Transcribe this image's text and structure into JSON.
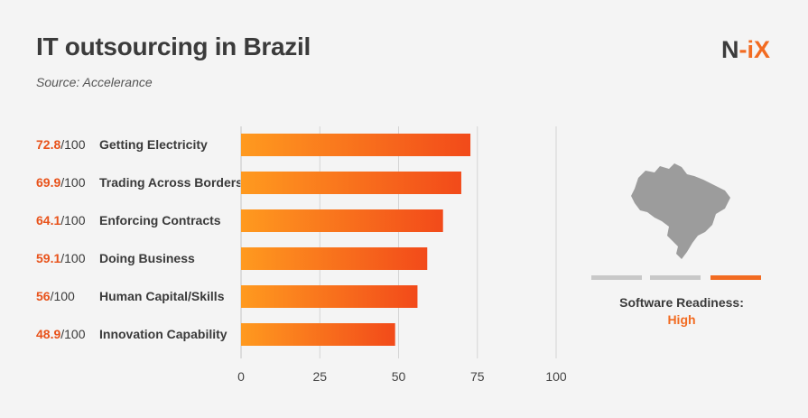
{
  "header": {
    "title": "IT outsourcing in Brazil",
    "source": "Source: Accelerance",
    "logo_main": "N",
    "logo_accent": "-iX"
  },
  "colors": {
    "accent": "#f26b21",
    "bar_start": "#ff9a1f",
    "bar_end": "#f24a1a",
    "gridline": "#d4d4d4",
    "inactive_segment": "#c8c8c8",
    "map_fill": "#9c9c9c"
  },
  "chart_data": {
    "type": "bar",
    "orientation": "horizontal",
    "title": "IT outsourcing in Brazil",
    "max_score_label": "/100",
    "categories": [
      "Getting Electricity",
      "Trading Across Borders",
      "Enforcing Contracts",
      "Doing Business",
      "Human Capital/Skills",
      "Innovation Capability"
    ],
    "values": [
      72.8,
      69.9,
      64.1,
      59.1,
      56,
      48.9
    ],
    "score_labels": [
      "72.8",
      "69.9",
      "64.1",
      "59.1",
      "56",
      "48.9"
    ],
    "xlim": [
      0,
      100
    ],
    "xticks": [
      0,
      25,
      50,
      75,
      100
    ],
    "xtick_labels": [
      "0",
      "25",
      "50",
      "75",
      "100"
    ],
    "grid": true
  },
  "readiness": {
    "label": "Software Readiness:",
    "value": "High",
    "level": 3,
    "levels_total": 3,
    "map_icon": "brazil-map-icon"
  }
}
